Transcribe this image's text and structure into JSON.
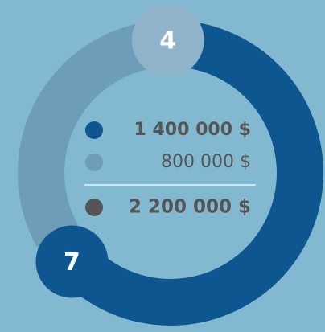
{
  "chart_data": {
    "type": "donut",
    "series": [
      {
        "value": 1400000,
        "label": "1 400 000 $",
        "color": "#0d5690",
        "badge": "7",
        "badge_color": "#0d5690"
      },
      {
        "value": 800000,
        "label": "800 000 $",
        "color": "#6d9db8",
        "badge": "4",
        "badge_color": "#8fb3c8"
      }
    ],
    "total": {
      "value": 2200000,
      "label": "2 200 000 $",
      "color": "#555555"
    }
  }
}
